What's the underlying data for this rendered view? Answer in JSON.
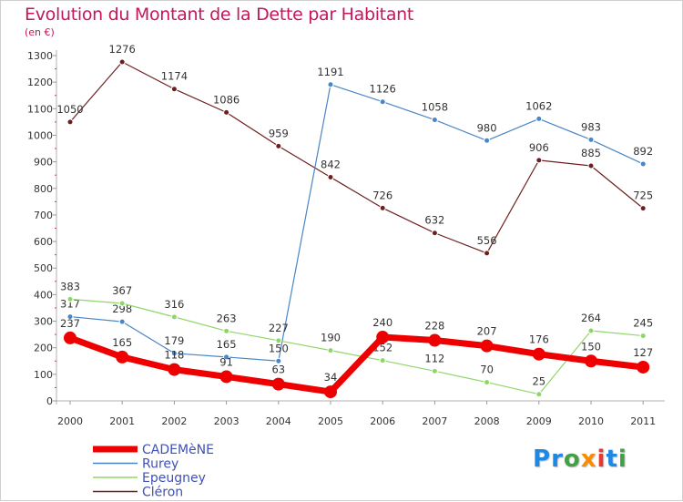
{
  "header": {
    "title": "Evolution du Montant de la Dette par Habitant",
    "unit": "(en €)"
  },
  "logo": {
    "text": "Proxiti",
    "letters": [
      {
        "ch": "P",
        "color": "#1e88e5"
      },
      {
        "ch": "r",
        "color": "#1e88e5"
      },
      {
        "ch": "o",
        "color": "#43a047"
      },
      {
        "ch": "x",
        "color": "#fb8c00"
      },
      {
        "ch": "i",
        "color": "#e53935"
      },
      {
        "ch": "t",
        "color": "#1e88e5"
      },
      {
        "ch": "i",
        "color": "#43a047"
      }
    ]
  },
  "chart_data": {
    "type": "line",
    "title": "Evolution du Montant de la Dette par Habitant",
    "ylabel": "(en €)",
    "x": [
      "2000",
      "2001",
      "2002",
      "2003",
      "2004",
      "2005",
      "2006",
      "2007",
      "2008",
      "2009",
      "2010",
      "2011"
    ],
    "ylim": [
      0,
      1300
    ],
    "yticks": [
      0,
      100,
      200,
      300,
      400,
      500,
      600,
      700,
      800,
      900,
      1000,
      1100,
      1200,
      1300
    ],
    "grid": false,
    "legend_position": "bottom-left",
    "series": [
      {
        "name": "Cléron",
        "color": "#6d1f1f",
        "values": [
          1050,
          1276,
          1174,
          1086,
          959,
          842,
          726,
          632,
          556,
          906,
          885,
          725
        ]
      },
      {
        "name": "Rurey",
        "color": "#4a86c5",
        "values": [
          317,
          298,
          179,
          165,
          150,
          1191,
          1126,
          1058,
          980,
          1062,
          983,
          892
        ]
      },
      {
        "name": "Epeugney",
        "color": "#8fd66a",
        "values": [
          383,
          367,
          316,
          263,
          227,
          190,
          152,
          112,
          70,
          25,
          264,
          245
        ]
      },
      {
        "name": "CADEMèNE",
        "color": "#ee0000",
        "values": [
          237,
          165,
          118,
          91,
          63,
          34,
          240,
          228,
          207,
          176,
          150,
          127
        ]
      }
    ]
  }
}
